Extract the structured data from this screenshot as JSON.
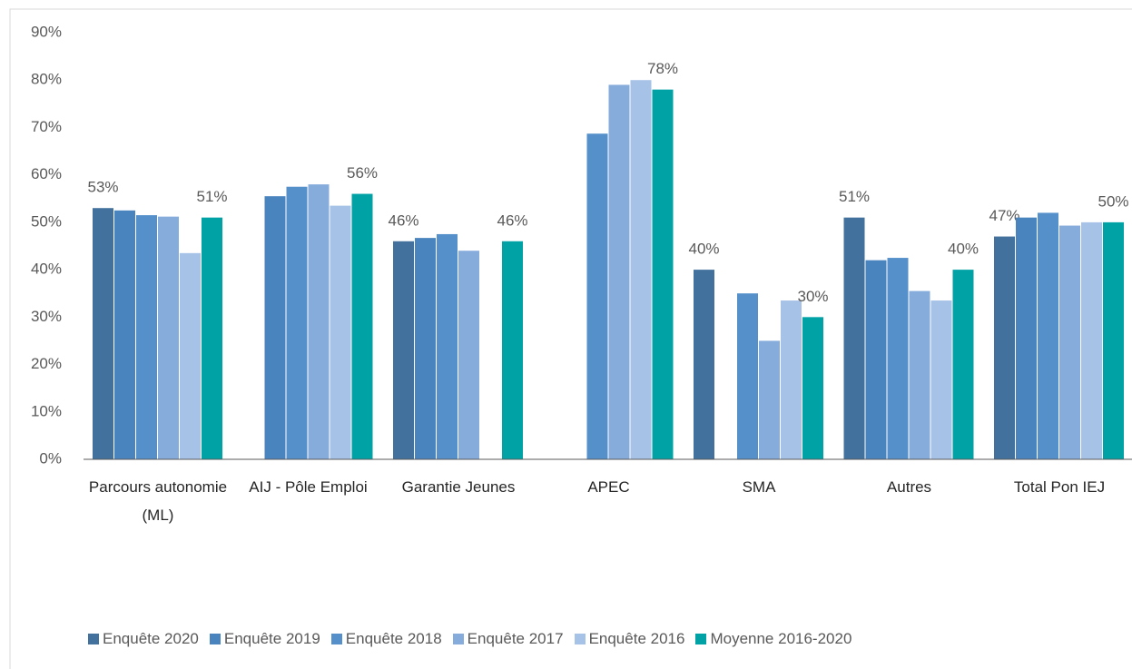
{
  "chart_data": {
    "type": "bar",
    "categories": [
      "Parcours autonomie (ML)",
      "AIJ - Pôle Emploi",
      "Garantie Jeunes",
      "APEC",
      "SMA",
      "Autres",
      "Total Pon IEJ"
    ],
    "series": [
      {
        "name": "Enquête 2020",
        "color": "#41719c",
        "values": [
          53,
          null,
          46,
          null,
          40,
          51,
          47
        ],
        "value_labels": [
          "53%",
          null,
          "46%",
          null,
          "40%",
          "51%",
          "47%"
        ]
      },
      {
        "name": "Enquête 2019",
        "color": "#4a84bf",
        "values": [
          52.5,
          55.5,
          46.7,
          null,
          null,
          42,
          51
        ]
      },
      {
        "name": "Enquête 2018",
        "color": "#5590cb",
        "values": [
          51.5,
          57.5,
          47.5,
          68.7,
          35,
          42.5,
          52
        ]
      },
      {
        "name": "Enquête 2017",
        "color": "#86acdc",
        "values": [
          51.2,
          58,
          44,
          79,
          25,
          35.5,
          49.3
        ]
      },
      {
        "name": "Enquête 2016",
        "color": "#a6c2e6",
        "values": [
          43.5,
          53.5,
          null,
          80,
          33.5,
          33.5,
          50
        ]
      },
      {
        "name": "Moyenne 2016-2020",
        "color": "#00a2a6",
        "values": [
          51,
          56,
          46,
          78,
          30,
          40,
          50
        ],
        "value_labels": [
          "51%",
          "56%",
          "46%",
          "78%",
          "30%",
          "40%",
          "50%"
        ]
      }
    ],
    "ylim": [
      0,
      90
    ],
    "yticks": [
      {
        "value": 0,
        "label": "0%"
      },
      {
        "value": 10,
        "label": "10%"
      },
      {
        "value": 20,
        "label": "20%"
      },
      {
        "value": 30,
        "label": "30%"
      },
      {
        "value": 40,
        "label": "40%"
      },
      {
        "value": 50,
        "label": "50%"
      },
      {
        "value": 60,
        "label": "60%"
      },
      {
        "value": 70,
        "label": "70%"
      },
      {
        "value": 80,
        "label": "80%"
      },
      {
        "value": 90,
        "label": "90%"
      }
    ],
    "grid": false,
    "legend": "bottom"
  }
}
